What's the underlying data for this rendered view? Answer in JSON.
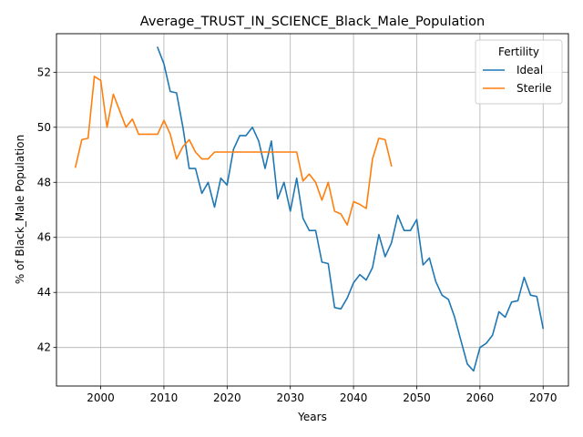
{
  "chart_data": {
    "type": "line",
    "title": "Average_TRUST_IN_SCIENCE_Black_Male_Population",
    "xlabel": "Years",
    "ylabel": "% of Black_Male Population",
    "xlim": [
      1993,
      2074
    ],
    "ylim": [
      40.6,
      53.4
    ],
    "xticks": [
      2000,
      2010,
      2020,
      2030,
      2040,
      2050,
      2060,
      2070
    ],
    "yticks": [
      42,
      44,
      46,
      48,
      50,
      52
    ],
    "grid": true,
    "legend": {
      "title": "Fertility",
      "placement": "top-right"
    },
    "series": [
      {
        "name": "Ideal",
        "color": "#1f77b4",
        "x": [
          2009,
          2010,
          2011,
          2012,
          2013,
          2014,
          2015,
          2016,
          2017,
          2018,
          2019,
          2020,
          2021,
          2022,
          2023,
          2024,
          2025,
          2026,
          2027,
          2028,
          2029,
          2030,
          2031,
          2032,
          2033,
          2034,
          2035,
          2036,
          2037,
          2038,
          2039,
          2040,
          2041,
          2042,
          2043,
          2044,
          2045,
          2046,
          2047,
          2048,
          2049,
          2050,
          2051,
          2052,
          2053,
          2054,
          2055,
          2056,
          2057,
          2058,
          2059,
          2060,
          2061,
          2062,
          2063,
          2064,
          2065,
          2066,
          2067,
          2068,
          2069,
          2070
        ],
        "values": [
          52.9,
          52.3,
          51.3,
          51.25,
          50.0,
          48.5,
          48.5,
          47.6,
          48.0,
          47.1,
          48.15,
          47.9,
          49.2,
          49.7,
          49.7,
          50.0,
          49.5,
          48.5,
          49.5,
          47.4,
          48.0,
          46.95,
          48.15,
          46.7,
          46.25,
          46.25,
          45.1,
          45.05,
          43.45,
          43.4,
          43.8,
          44.35,
          44.65,
          44.45,
          44.9,
          46.1,
          45.3,
          45.8,
          46.8,
          46.25,
          46.25,
          46.65,
          45.0,
          45.25,
          44.4,
          43.9,
          43.75,
          43.1,
          42.25,
          41.4,
          41.15,
          42.0,
          42.15,
          42.45,
          43.3,
          43.1,
          43.65,
          43.7,
          44.55,
          43.9,
          43.85,
          42.7
        ]
      },
      {
        "name": "Sterile",
        "color": "#ff7f0e",
        "x": [
          1996,
          1997,
          1998,
          1999,
          2000,
          2001,
          2002,
          2003,
          2004,
          2005,
          2006,
          2007,
          2008,
          2009,
          2010,
          2011,
          2012,
          2013,
          2014,
          2015,
          2016,
          2017,
          2018,
          2019,
          2020,
          2021,
          2022,
          2023,
          2024,
          2025,
          2026,
          2027,
          2028,
          2029,
          2030,
          2031,
          2032,
          2033,
          2034,
          2035,
          2036,
          2037,
          2038,
          2039,
          2040,
          2041,
          2042,
          2043,
          2044,
          2045,
          2046
        ],
        "values": [
          48.55,
          49.55,
          49.6,
          51.85,
          51.7,
          50.0,
          51.2,
          50.6,
          50.0,
          50.3,
          49.75,
          49.75,
          49.75,
          49.75,
          50.25,
          49.75,
          48.85,
          49.3,
          49.55,
          49.1,
          48.85,
          48.85,
          49.1,
          49.1,
          49.1,
          49.1,
          49.1,
          49.1,
          49.1,
          49.1,
          49.1,
          49.1,
          49.1,
          49.1,
          49.1,
          49.1,
          48.05,
          48.3,
          48.0,
          47.35,
          48.0,
          46.95,
          46.85,
          46.45,
          47.3,
          47.2,
          47.05,
          48.85,
          49.6,
          49.55,
          48.6
        ]
      }
    ]
  }
}
